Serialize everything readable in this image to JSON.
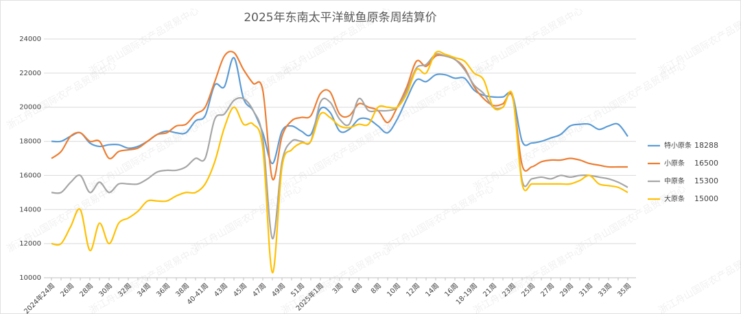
{
  "chart_data": {
    "type": "line",
    "title": "2025年东南太平洋鱿鱼原条周结算价",
    "watermark": "浙江舟山国际农产品贸易中心",
    "categories": [
      "2024年24周",
      null,
      "26周",
      null,
      "28周",
      null,
      "30周",
      null,
      "32周",
      null,
      "34周",
      null,
      "36周",
      null,
      "38周",
      null,
      "40-41周",
      null,
      "43周",
      null,
      "45周",
      null,
      "47周",
      null,
      "49周",
      null,
      "51周",
      null,
      "2025年1周",
      null,
      "3周",
      null,
      "6周",
      null,
      "8周",
      null,
      "10周",
      null,
      "12周",
      null,
      "14周",
      null,
      "16周",
      null,
      "18-19周",
      null,
      "21周",
      null,
      "23周",
      null,
      "25周",
      null,
      "27周",
      null,
      "29周",
      null,
      "31周",
      null,
      "33周",
      null,
      "35周"
    ],
    "ylim": [
      10000,
      24000
    ],
    "yticks": [
      10000,
      12000,
      14000,
      16000,
      18000,
      20000,
      22000,
      24000
    ],
    "grid": true,
    "legend": "right",
    "series": [
      {
        "name": "特小原条",
        "color": "#5b9bd5",
        "values": [
          18000,
          18000,
          18300,
          18500,
          17900,
          17700,
          17800,
          17800,
          17600,
          17700,
          18000,
          18400,
          18600,
          18500,
          18500,
          19200,
          19500,
          21300,
          21200,
          22900,
          20500,
          19800,
          18500,
          16700,
          18600,
          18900,
          18600,
          18400,
          19900,
          19700,
          18600,
          18700,
          19300,
          19300,
          18900,
          18500,
          19300,
          20500,
          21600,
          21500,
          21900,
          21900,
          21700,
          21700,
          21000,
          20700,
          20600,
          20600,
          20700,
          18000,
          17900,
          18000,
          18200,
          18400,
          18900,
          19000,
          19000,
          18700,
          18900,
          19000,
          18288
        ]
      },
      {
        "name": "小原条",
        "color": "#ed7d31",
        "values": [
          17000,
          17400,
          18300,
          18500,
          18000,
          18000,
          17000,
          17400,
          17500,
          17600,
          18000,
          18400,
          18500,
          18900,
          19000,
          19600,
          20000,
          21500,
          23000,
          23200,
          22200,
          21400,
          21000,
          15800,
          18300,
          19200,
          19400,
          19500,
          20800,
          20900,
          19600,
          19500,
          20200,
          20000,
          19800,
          19100,
          20000,
          21200,
          22700,
          22400,
          23000,
          23000,
          22800,
          22300,
          21200,
          20500,
          20100,
          20200,
          20600,
          16600,
          16500,
          16800,
          16900,
          16900,
          17000,
          16900,
          16700,
          16600,
          16500,
          16500,
          16500
        ]
      },
      {
        "name": "中原条",
        "color": "#a5a5a5",
        "values": [
          15000,
          15000,
          15600,
          16000,
          15000,
          15600,
          15000,
          15500,
          15500,
          15500,
          15800,
          16200,
          16300,
          16300,
          16500,
          17000,
          17000,
          19300,
          19600,
          20400,
          20500,
          19800,
          18200,
          12300,
          16800,
          18000,
          18000,
          18000,
          20300,
          20300,
          19300,
          19000,
          20500,
          19800,
          19800,
          19800,
          20000,
          21000,
          22300,
          22500,
          23100,
          23000,
          22800,
          22200,
          21300,
          20800,
          20000,
          20000,
          20700,
          15700,
          15800,
          15900,
          15800,
          16000,
          15900,
          16000,
          16000,
          15900,
          15800,
          15600,
          15300
        ]
      },
      {
        "name": "大原条",
        "color": "#ffc000",
        "values": [
          12000,
          12000,
          13000,
          14000,
          11600,
          13200,
          12000,
          13200,
          13500,
          13900,
          14500,
          14500,
          14500,
          14800,
          15000,
          15000,
          15500,
          16800,
          18800,
          20000,
          19000,
          19000,
          17600,
          10300,
          16500,
          17500,
          17900,
          18000,
          19600,
          19400,
          18900,
          18800,
          19000,
          19000,
          20000,
          20000,
          20000,
          20800,
          22200,
          22000,
          23200,
          23100,
          22900,
          22700,
          22000,
          21600,
          20000,
          20000,
          20700,
          15500,
          15500,
          15500,
          15500,
          15500,
          15500,
          15700,
          16000,
          15500,
          15400,
          15300,
          15000
        ]
      }
    ]
  }
}
